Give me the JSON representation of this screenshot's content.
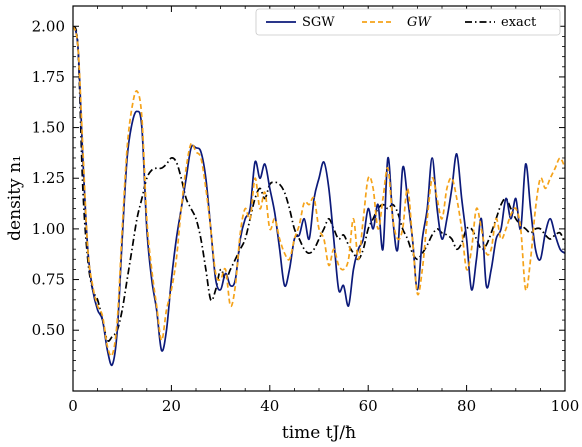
{
  "chart_data": {
    "type": "line",
    "xlabel": "time tJ/ħ",
    "ylabel": "density n₁",
    "xlim": [
      0,
      100
    ],
    "ylim": [
      0.2,
      2.1
    ],
    "x_ticks": [
      "0",
      "20",
      "40",
      "60",
      "80",
      "100"
    ],
    "y_ticks": [
      "0.50",
      "0.75",
      "1.00",
      "1.25",
      "1.50",
      "1.75",
      "2.00"
    ],
    "x_tick_values": [
      0,
      20,
      40,
      60,
      80,
      100
    ],
    "y_tick_values": [
      0.5,
      0.75,
      1.0,
      1.25,
      1.5,
      1.75,
      2.0
    ],
    "grid": false,
    "legend_position": "top",
    "series": [
      {
        "name": "SGW",
        "color": "#0c1a7a",
        "style": "solid",
        "points": [
          [
            0,
            2.0
          ],
          [
            1,
            1.9
          ],
          [
            2,
            1.35
          ],
          [
            3,
            0.9
          ],
          [
            4,
            0.7
          ],
          [
            5,
            0.6
          ],
          [
            6,
            0.55
          ],
          [
            7,
            0.4
          ],
          [
            8,
            0.33
          ],
          [
            9,
            0.5
          ],
          [
            10,
            0.95
          ],
          [
            11,
            1.35
          ],
          [
            12,
            1.52
          ],
          [
            13,
            1.58
          ],
          [
            14,
            1.5
          ],
          [
            15,
            1.0
          ],
          [
            16,
            0.75
          ],
          [
            17,
            0.6
          ],
          [
            18,
            0.4
          ],
          [
            19,
            0.5
          ],
          [
            20,
            0.75
          ],
          [
            21,
            0.95
          ],
          [
            22,
            1.1
          ],
          [
            23,
            1.25
          ],
          [
            24,
            1.4
          ],
          [
            25,
            1.4
          ],
          [
            26,
            1.38
          ],
          [
            27,
            1.25
          ],
          [
            28,
            1.0
          ],
          [
            29,
            0.75
          ],
          [
            30,
            0.7
          ],
          [
            31,
            0.78
          ],
          [
            32,
            0.72
          ],
          [
            33,
            0.75
          ],
          [
            34,
            0.95
          ],
          [
            35,
            1.05
          ],
          [
            36,
            1.1
          ],
          [
            37,
            1.33
          ],
          [
            38,
            1.25
          ],
          [
            39,
            1.32
          ],
          [
            40,
            1.2
          ],
          [
            41,
            1.08
          ],
          [
            42,
            0.9
          ],
          [
            43,
            0.72
          ],
          [
            44,
            0.8
          ],
          [
            45,
            0.95
          ],
          [
            46,
            0.97
          ],
          [
            47,
            1.05
          ],
          [
            48,
            0.95
          ],
          [
            49,
            1.15
          ],
          [
            50,
            1.25
          ],
          [
            51,
            1.33
          ],
          [
            52,
            1.2
          ],
          [
            53,
            0.95
          ],
          [
            54,
            0.7
          ],
          [
            55,
            0.72
          ],
          [
            56,
            0.62
          ],
          [
            57,
            0.8
          ],
          [
            58,
            0.9
          ],
          [
            59,
            0.95
          ],
          [
            60,
            1.1
          ],
          [
            61,
            1.0
          ],
          [
            62,
            1.12
          ],
          [
            63,
            0.9
          ],
          [
            64,
            1.35
          ],
          [
            65,
            1.05
          ],
          [
            66,
            0.9
          ],
          [
            67,
            1.3
          ],
          [
            68,
            1.15
          ],
          [
            69,
            0.95
          ],
          [
            70,
            0.7
          ],
          [
            71,
            0.95
          ],
          [
            72,
            1.1
          ],
          [
            73,
            1.35
          ],
          [
            74,
            1.1
          ],
          [
            75,
            0.95
          ],
          [
            76,
            1.05
          ],
          [
            77,
            1.2
          ],
          [
            78,
            1.37
          ],
          [
            79,
            1.15
          ],
          [
            80,
            0.95
          ],
          [
            81,
            0.7
          ],
          [
            82,
            0.85
          ],
          [
            83,
            1.05
          ],
          [
            84,
            0.72
          ],
          [
            85,
            0.8
          ],
          [
            86,
            0.95
          ],
          [
            87,
            1.0
          ],
          [
            88,
            1.15
          ],
          [
            89,
            1.05
          ],
          [
            90,
            1.15
          ],
          [
            91,
            1.0
          ],
          [
            92,
            1.32
          ],
          [
            93,
            1.1
          ],
          [
            94,
            0.9
          ],
          [
            95,
            0.85
          ],
          [
            96,
            0.98
          ],
          [
            97,
            1.05
          ],
          [
            98,
            0.97
          ],
          [
            99,
            0.9
          ],
          [
            100,
            0.88
          ]
        ]
      },
      {
        "name": "GW",
        "color": "#f5a31a",
        "style": "dashed",
        "points": [
          [
            0,
            2.0
          ],
          [
            1,
            1.9
          ],
          [
            2,
            1.4
          ],
          [
            3,
            0.9
          ],
          [
            4,
            0.72
          ],
          [
            5,
            0.62
          ],
          [
            6,
            0.57
          ],
          [
            7,
            0.42
          ],
          [
            8,
            0.38
          ],
          [
            9,
            0.55
          ],
          [
            10,
            1.0
          ],
          [
            11,
            1.4
          ],
          [
            12,
            1.6
          ],
          [
            13,
            1.68
          ],
          [
            14,
            1.55
          ],
          [
            15,
            1.05
          ],
          [
            16,
            0.8
          ],
          [
            17,
            0.62
          ],
          [
            18,
            0.45
          ],
          [
            19,
            0.6
          ],
          [
            20,
            0.7
          ],
          [
            21,
            0.85
          ],
          [
            22,
            1.1
          ],
          [
            23,
            1.3
          ],
          [
            24,
            1.42
          ],
          [
            25,
            1.38
          ],
          [
            26,
            1.35
          ],
          [
            27,
            1.2
          ],
          [
            28,
            1.0
          ],
          [
            29,
            0.78
          ],
          [
            30,
            0.75
          ],
          [
            31,
            0.8
          ],
          [
            32,
            0.62
          ],
          [
            33,
            0.72
          ],
          [
            34,
            0.98
          ],
          [
            35,
            1.1
          ],
          [
            36,
            1.05
          ],
          [
            37,
            1.25
          ],
          [
            38,
            1.1
          ],
          [
            39,
            1.18
          ],
          [
            40,
            1.0
          ],
          [
            41,
            1.05
          ],
          [
            42,
            0.95
          ],
          [
            43,
            0.88
          ],
          [
            44,
            0.85
          ],
          [
            45,
            0.95
          ],
          [
            46,
            1.02
          ],
          [
            47,
            1.13
          ],
          [
            48,
            1.12
          ],
          [
            49,
            1.15
          ],
          [
            50,
            1.0
          ],
          [
            51,
            0.95
          ],
          [
            52,
            0.82
          ],
          [
            53,
            0.9
          ],
          [
            54,
            0.82
          ],
          [
            55,
            0.8
          ],
          [
            56,
            0.85
          ],
          [
            57,
            1.05
          ],
          [
            58,
            0.85
          ],
          [
            59,
            1.05
          ],
          [
            60,
            1.25
          ],
          [
            61,
            1.2
          ],
          [
            62,
            1.0
          ],
          [
            63,
            1.15
          ],
          [
            64,
            1.3
          ],
          [
            65,
            1.05
          ],
          [
            66,
            0.95
          ],
          [
            67,
            1.0
          ],
          [
            68,
            1.2
          ],
          [
            69,
            0.95
          ],
          [
            70,
            0.68
          ],
          [
            71,
            0.8
          ],
          [
            72,
            1.05
          ],
          [
            73,
            1.25
          ],
          [
            74,
            1.15
          ],
          [
            75,
            1.05
          ],
          [
            76,
            1.2
          ],
          [
            77,
            1.25
          ],
          [
            78,
            1.15
          ],
          [
            79,
            1.0
          ],
          [
            80,
            0.8
          ],
          [
            81,
            0.9
          ],
          [
            82,
            1.1
          ],
          [
            83,
            1.0
          ],
          [
            84,
            0.88
          ],
          [
            85,
            0.9
          ],
          [
            86,
            1.05
          ],
          [
            87,
            0.95
          ],
          [
            88,
            1.0
          ],
          [
            89,
            1.07
          ],
          [
            90,
            1.1
          ],
          [
            91,
            1.0
          ],
          [
            92,
            0.7
          ],
          [
            93,
            0.85
          ],
          [
            94,
            1.1
          ],
          [
            95,
            1.25
          ],
          [
            96,
            1.2
          ],
          [
            97,
            1.25
          ],
          [
            98,
            1.3
          ],
          [
            99,
            1.35
          ],
          [
            100,
            1.3
          ]
        ]
      },
      {
        "name": "exact",
        "color": "#000000",
        "style": "dashdot",
        "points": [
          [
            0,
            2.0
          ],
          [
            1,
            1.9
          ],
          [
            2,
            1.2
          ],
          [
            3,
            0.85
          ],
          [
            4,
            0.7
          ],
          [
            5,
            0.65
          ],
          [
            6,
            0.55
          ],
          [
            7,
            0.45
          ],
          [
            8,
            0.47
          ],
          [
            9,
            0.5
          ],
          [
            10,
            0.6
          ],
          [
            11,
            0.75
          ],
          [
            12,
            0.9
          ],
          [
            13,
            1.05
          ],
          [
            14,
            1.15
          ],
          [
            15,
            1.25
          ],
          [
            16,
            1.29
          ],
          [
            17,
            1.3
          ],
          [
            18,
            1.3
          ],
          [
            19,
            1.32
          ],
          [
            20,
            1.35
          ],
          [
            21,
            1.33
          ],
          [
            22,
            1.25
          ],
          [
            23,
            1.15
          ],
          [
            24,
            1.1
          ],
          [
            25,
            1.05
          ],
          [
            26,
            0.95
          ],
          [
            27,
            0.8
          ],
          [
            28,
            0.65
          ],
          [
            29,
            0.7
          ],
          [
            30,
            0.8
          ],
          [
            31,
            0.75
          ],
          [
            32,
            0.8
          ],
          [
            33,
            0.85
          ],
          [
            34,
            0.9
          ],
          [
            35,
            0.95
          ],
          [
            36,
            1.05
          ],
          [
            37,
            1.15
          ],
          [
            38,
            1.2
          ],
          [
            39,
            1.15
          ],
          [
            40,
            1.22
          ],
          [
            41,
            1.23
          ],
          [
            42,
            1.22
          ],
          [
            43,
            1.18
          ],
          [
            44,
            1.1
          ],
          [
            45,
            1.0
          ],
          [
            46,
            0.95
          ],
          [
            47,
            0.9
          ],
          [
            48,
            0.88
          ],
          [
            49,
            0.9
          ],
          [
            50,
            0.95
          ],
          [
            51,
            1.0
          ],
          [
            52,
            1.05
          ],
          [
            53,
            1.0
          ],
          [
            54,
            0.95
          ],
          [
            55,
            0.97
          ],
          [
            56,
            0.92
          ],
          [
            57,
            0.88
          ],
          [
            58,
            0.85
          ],
          [
            59,
            0.9
          ],
          [
            60,
            1.0
          ],
          [
            61,
            1.05
          ],
          [
            62,
            1.1
          ],
          [
            63,
            1.12
          ],
          [
            64,
            1.1
          ],
          [
            65,
            1.12
          ],
          [
            66,
            1.08
          ],
          [
            67,
            1.0
          ],
          [
            68,
            0.95
          ],
          [
            69,
            0.88
          ],
          [
            70,
            0.85
          ],
          [
            71,
            0.88
          ],
          [
            72,
            0.92
          ],
          [
            73,
            0.97
          ],
          [
            74,
            1.0
          ],
          [
            75,
            0.98
          ],
          [
            76,
            0.97
          ],
          [
            77,
            0.95
          ],
          [
            78,
            0.9
          ],
          [
            79,
            0.93
          ],
          [
            80,
            1.0
          ],
          [
            81,
            1.0
          ],
          [
            82,
            0.95
          ],
          [
            83,
            0.9
          ],
          [
            84,
            0.92
          ],
          [
            85,
            0.98
          ],
          [
            86,
            1.05
          ],
          [
            87,
            1.12
          ],
          [
            88,
            1.15
          ],
          [
            89,
            1.1
          ],
          [
            90,
            1.05
          ],
          [
            91,
            1.02
          ],
          [
            92,
            1.0
          ],
          [
            93,
            0.98
          ],
          [
            94,
            1.0
          ],
          [
            95,
            1.0
          ],
          [
            96,
            0.97
          ],
          [
            97,
            0.95
          ],
          [
            98,
            0.97
          ],
          [
            99,
            0.98
          ],
          [
            100,
            0.93
          ]
        ]
      }
    ]
  }
}
